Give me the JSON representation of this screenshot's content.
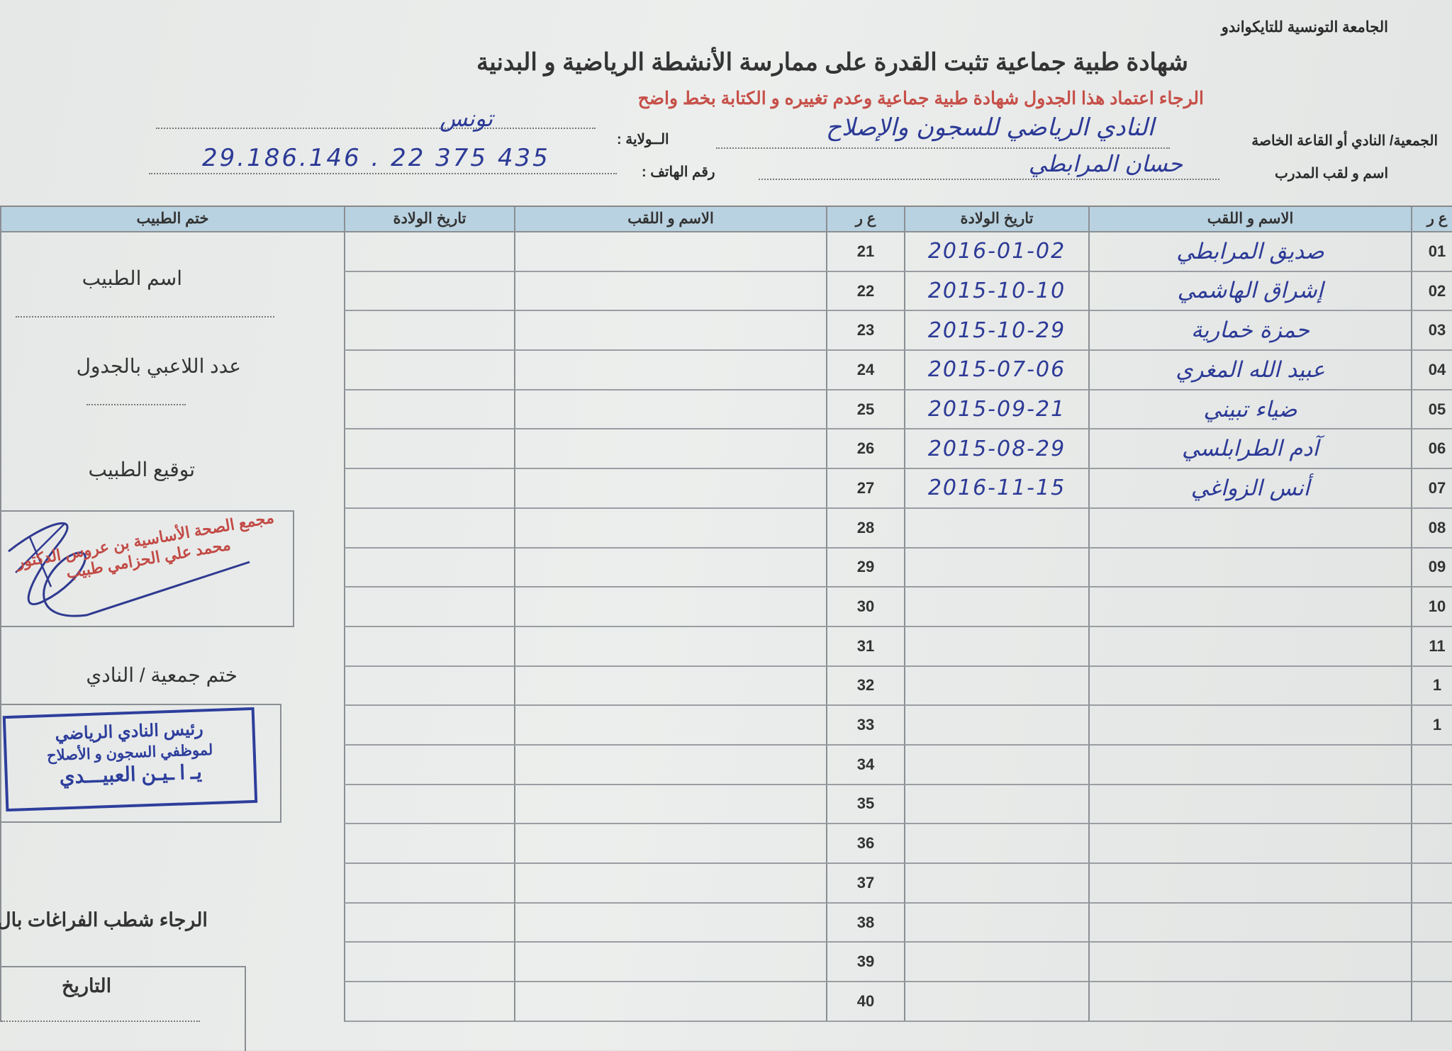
{
  "header": {
    "federation": "الجامعة التونسية للتايكواندو",
    "title": "شهادة طبية جماعية تثبت القدرة على ممارسة الأنشطة الرياضية و البدنية",
    "instruction": "الرجاء اعتماد هذا الجدول  شهادة طبية جماعية وعدم تغييره و الكتابة بخط واضح"
  },
  "fields": {
    "club_label": "الجمعية/ النادي أو القاعة الخاصة",
    "club_value": "النادي الرياضي للسجون والإصلاح",
    "region_label": "الــولاية :",
    "region_value": "تونس",
    "coach_label": "اسم و لقب المدرب",
    "coach_value": "حسان المرابطي",
    "phone_label": "رقم الهاتف :",
    "phone_value": "29.186.146 . 22 375 435"
  },
  "table": {
    "headers": [
      "ع ر",
      "الاسم و اللقب",
      "تاريخ الولادة",
      "ع ر",
      "الاسم و اللقب",
      "تاريخ الولادة",
      "ختم الطبيب"
    ],
    "rows": [
      {
        "no": "01",
        "name": "صديق المرابطي",
        "dob": "2016-01-02",
        "no2": "21"
      },
      {
        "no": "02",
        "name": "إشراق الهاشمي",
        "dob": "2015-10-10",
        "no2": "22"
      },
      {
        "no": "03",
        "name": "حمزة خمارية",
        "dob": "2015-10-29",
        "no2": "23"
      },
      {
        "no": "04",
        "name": "عبيد الله المغري",
        "dob": "2015-07-06",
        "no2": "24"
      },
      {
        "no": "05",
        "name": "ضياء تبيني",
        "dob": "2015-09-21",
        "no2": "25"
      },
      {
        "no": "06",
        "name": "آدم الطرابلسي",
        "dob": "2015-08-29",
        "no2": "26"
      },
      {
        "no": "07",
        "name": "أنس الزواغي",
        "dob": "2016-11-15",
        "no2": "27"
      },
      {
        "no": "08",
        "name": "",
        "dob": "",
        "no2": "28"
      },
      {
        "no": "09",
        "name": "",
        "dob": "",
        "no2": "29"
      },
      {
        "no": "10",
        "name": "",
        "dob": "",
        "no2": "30"
      },
      {
        "no": "11",
        "name": "",
        "dob": "",
        "no2": "31"
      },
      {
        "no": "1",
        "name": "",
        "dob": "",
        "no2": "32"
      },
      {
        "no": "1",
        "name": "",
        "dob": "",
        "no2": "33"
      },
      {
        "no": "",
        "name": "",
        "dob": "",
        "no2": "34"
      },
      {
        "no": "",
        "name": "",
        "dob": "",
        "no2": "35"
      },
      {
        "no": "",
        "name": "",
        "dob": "",
        "no2": "36"
      },
      {
        "no": "",
        "name": "",
        "dob": "",
        "no2": "37"
      },
      {
        "no": "",
        "name": "",
        "dob": "",
        "no2": "38"
      },
      {
        "no": "",
        "name": "",
        "dob": "",
        "no2": "39"
      },
      {
        "no": "",
        "name": "",
        "dob": "",
        "no2": "40"
      }
    ]
  },
  "panel": {
    "doctor_name_label": "اسم الطبيب",
    "players_count_label": "عدد اللاعبي بالجدول",
    "doctor_signature_label": "توقيع الطبيب",
    "club_stamp_label": "ختم جمعية / النادي",
    "strike_note": "الرجاء شطب  الفراغات بال",
    "date_label": "التاريخ"
  },
  "stamps": {
    "doctor_stamp": "مجمع الصحة الأساسية بن عروس الدكتور محمد علي الحزامي طبيب",
    "club_stamp_lines": [
      "رئيس النادي الرياضي",
      "لموظفي السجون و الأصلاح",
      "يـ ا ـيـن العبيـــدي"
    ]
  },
  "colors": {
    "header_fill": "#b9d2e1",
    "ink_blue": "#2c3a96",
    "note_red": "#c65049",
    "stamp_red": "#c24a45"
  }
}
